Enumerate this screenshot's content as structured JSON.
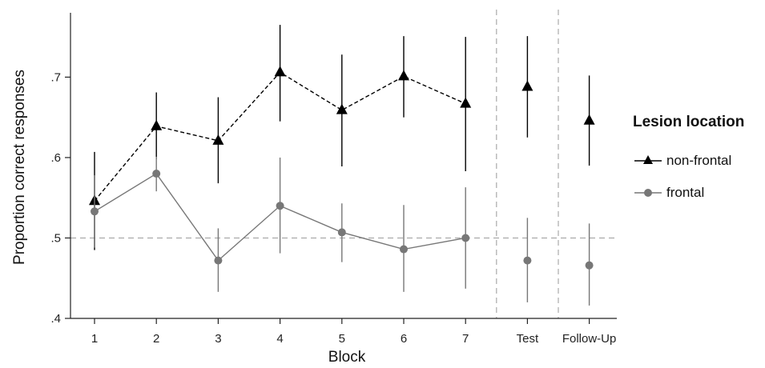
{
  "chart_data": {
    "type": "line",
    "title": "",
    "xlabel": "Block",
    "ylabel": "Proportion correct responses",
    "categories": [
      "1",
      "2",
      "3",
      "4",
      "5",
      "6",
      "7",
      "Test",
      "Follow-Up"
    ],
    "ylim": [
      0.4,
      0.78
    ],
    "yticks": [
      0.4,
      0.5,
      0.6,
      0.7
    ],
    "ytick_labels": [
      ".4",
      ".5",
      ".6",
      ".7"
    ],
    "reference_line_y": 0.5,
    "phase_separators_between": [
      [
        "7",
        "Test"
      ],
      [
        "Test",
        "Follow-Up"
      ]
    ],
    "legend_title": "Lesion location",
    "legend_placement": "right",
    "series": [
      {
        "name": "non-frontal",
        "marker": "triangle",
        "color": "#000000",
        "line_style": "dashed",
        "connected_through": "7",
        "values": [
          0.546,
          0.639,
          0.621,
          0.706,
          0.659,
          0.701,
          0.667,
          0.688,
          0.646
        ],
        "ci_low": [
          0.485,
          0.598,
          0.568,
          0.645,
          0.589,
          0.65,
          0.583,
          0.625,
          0.59
        ],
        "ci_high": [
          0.607,
          0.681,
          0.675,
          0.765,
          0.728,
          0.751,
          0.75,
          0.751,
          0.702
        ]
      },
      {
        "name": "frontal",
        "marker": "circle",
        "color": "#777777",
        "line_style": "solid",
        "connected_through": "7",
        "values": [
          0.533,
          0.58,
          0.472,
          0.54,
          0.507,
          0.486,
          0.5,
          0.472,
          0.466
        ],
        "ci_low": [
          0.488,
          0.558,
          0.433,
          0.481,
          0.47,
          0.433,
          0.437,
          0.42,
          0.416
        ],
        "ci_high": [
          0.578,
          0.601,
          0.512,
          0.6,
          0.543,
          0.541,
          0.563,
          0.525,
          0.518
        ]
      }
    ]
  }
}
